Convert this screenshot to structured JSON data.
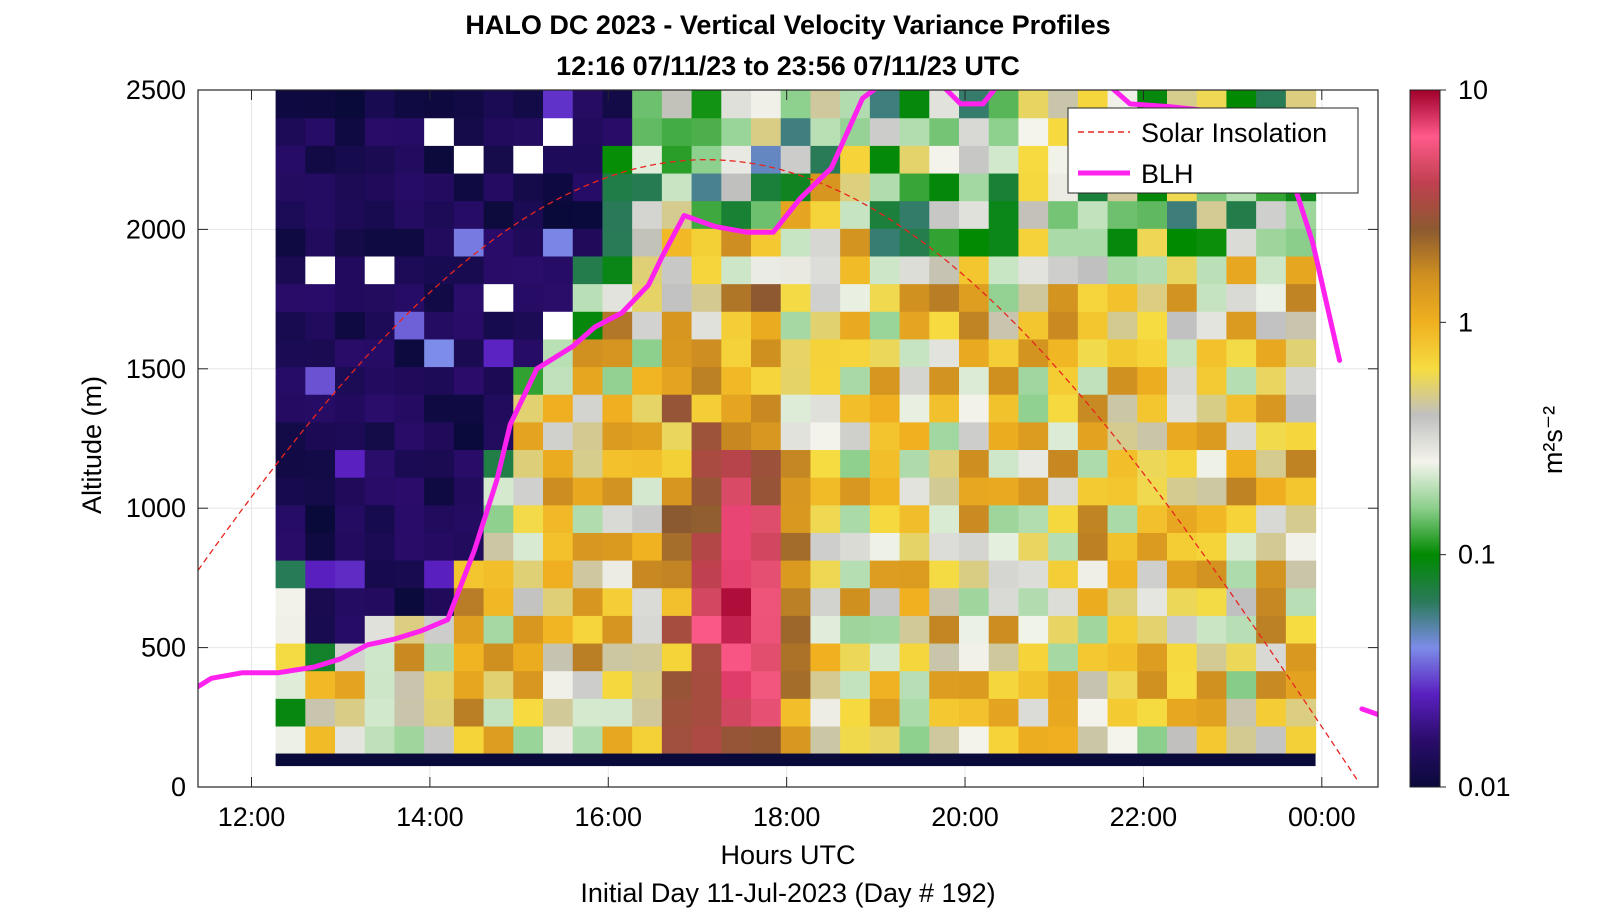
{
  "chart_data": {
    "type": "heatmap",
    "title": "HALO DC 2023 - Vertical Velocity Variance Profiles",
    "subtitle": "12:16 07/11/23 to 23:56 07/11/23  UTC",
    "xlabel": "Hours UTC",
    "ylabel": "Altitude (m)",
    "footer": "Initial Day 11-Jul-2023 (Day # 192)",
    "x_range_hours": [
      11.4,
      24.63
    ],
    "y_range": [
      0,
      2500
    ],
    "x_ticks": [
      {
        "hour": 12,
        "label": "12:00"
      },
      {
        "hour": 14,
        "label": "14:00"
      },
      {
        "hour": 16,
        "label": "16:00"
      },
      {
        "hour": 18,
        "label": "18:00"
      },
      {
        "hour": 20,
        "label": "20:00"
      },
      {
        "hour": 22,
        "label": "22:00"
      },
      {
        "hour": 24,
        "label": "00:00"
      }
    ],
    "y_ticks": [
      {
        "value": 0,
        "label": "0"
      },
      {
        "value": 500,
        "label": "500"
      },
      {
        "value": 1000,
        "label": "1000"
      },
      {
        "value": 1500,
        "label": "1500"
      },
      {
        "value": 2000,
        "label": "2000"
      },
      {
        "value": 2500,
        "label": "2500"
      }
    ],
    "grid": true,
    "colorbar": {
      "label": "m²s⁻²",
      "scale": "log",
      "range": [
        0.01,
        10
      ],
      "ticks": [
        {
          "value": 0.01,
          "label": "0.01"
        },
        {
          "value": 0.1,
          "label": "0.1"
        },
        {
          "value": 1,
          "label": "1"
        },
        {
          "value": 10,
          "label": "10"
        }
      ],
      "colors": [
        "#0a0a3a",
        "#2a0c6a",
        "#5a20c0",
        "#7c8ce8",
        "#2a7a5a",
        "#008a00",
        "#8ccf8c",
        "#f4f4ec",
        "#c0c0c0",
        "#f6dc40",
        "#f0b020",
        "#d09020",
        "#8c5a30",
        "#c04050",
        "#ff5a8a",
        "#a0002a"
      ]
    },
    "legend": {
      "placement": "top-right",
      "entries": [
        {
          "label": "Solar Insolation",
          "style": "dashed",
          "color": "#e8251e"
        },
        {
          "label": "BLH",
          "style": "solid",
          "color": "#ff22ee"
        }
      ]
    },
    "heatmap": {
      "time_start_hour": 12.27,
      "time_end_hour": 23.93,
      "n_time_bins": 35,
      "alt_start_m": 120,
      "alt_end_m": 2500,
      "n_alt_bins": 24,
      "noise_floor_alt_m": 120,
      "noise_floor_color": "#0a0a3a",
      "nighttime_region": {
        "end_hour_at_top": 16.3,
        "end_hour_at_bottom": 14.2,
        "value_m2s2": 0.01
      },
      "peak": {
        "hour": 17.5,
        "alt_m": 650,
        "value_m2s2": 5
      }
    },
    "blh": {
      "segments": [
        [
          {
            "hour": 11.4,
            "alt": 360
          },
          {
            "hour": 11.55,
            "alt": 390
          },
          {
            "hour": 11.9,
            "alt": 410
          },
          {
            "hour": 12.3,
            "alt": 410
          },
          {
            "hour": 12.7,
            "alt": 430
          },
          {
            "hour": 13.0,
            "alt": 460
          },
          {
            "hour": 13.3,
            "alt": 510
          },
          {
            "hour": 13.6,
            "alt": 530
          },
          {
            "hour": 13.9,
            "alt": 560
          },
          {
            "hour": 14.2,
            "alt": 600
          },
          {
            "hour": 14.5,
            "alt": 850
          },
          {
            "hour": 14.75,
            "alt": 1100
          },
          {
            "hour": 14.9,
            "alt": 1300
          },
          {
            "hour": 15.2,
            "alt": 1500
          },
          {
            "hour": 15.6,
            "alt": 1580
          },
          {
            "hour": 15.85,
            "alt": 1650
          },
          {
            "hour": 16.15,
            "alt": 1700
          },
          {
            "hour": 16.45,
            "alt": 1800
          },
          {
            "hour": 16.6,
            "alt": 1900
          },
          {
            "hour": 16.85,
            "alt": 2050
          },
          {
            "hour": 17.2,
            "alt": 2010
          },
          {
            "hour": 17.55,
            "alt": 1990
          },
          {
            "hour": 17.85,
            "alt": 1990
          },
          {
            "hour": 18.15,
            "alt": 2110
          },
          {
            "hour": 18.5,
            "alt": 2220
          },
          {
            "hour": 18.85,
            "alt": 2470
          },
          {
            "hour": 19.1,
            "alt": 2530
          }
        ],
        [
          {
            "hour": 19.7,
            "alt": 2530
          },
          {
            "hour": 19.95,
            "alt": 2450
          },
          {
            "hour": 20.2,
            "alt": 2450
          },
          {
            "hour": 20.4,
            "alt": 2530
          }
        ],
        [
          {
            "hour": 21.6,
            "alt": 2520
          },
          {
            "hour": 21.85,
            "alt": 2450
          },
          {
            "hour": 22.3,
            "alt": 2440
          },
          {
            "hour": 22.9,
            "alt": 2420
          },
          {
            "hour": 23.3,
            "alt": 2380
          },
          {
            "hour": 23.65,
            "alt": 2200
          },
          {
            "hour": 23.9,
            "alt": 1950
          },
          {
            "hour": 24.2,
            "alt": 1530
          }
        ],
        [
          {
            "hour": 24.45,
            "alt": 280
          },
          {
            "hour": 24.63,
            "alt": 260
          }
        ]
      ]
    },
    "solar_insolation": {
      "shape": "dashed arc",
      "peak_hour": 17.1,
      "peak_alt_equiv": 2250,
      "start_hour": 11.4,
      "start_alt_equiv": 610,
      "zero_hour": 24.45
    }
  }
}
